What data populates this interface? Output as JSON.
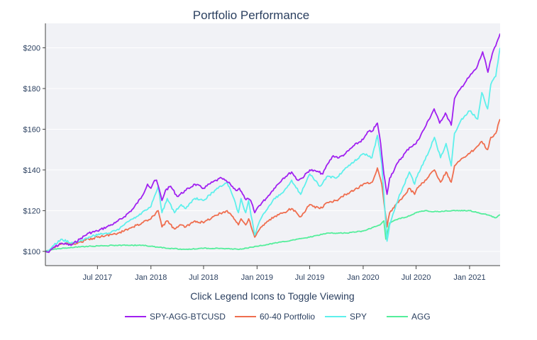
{
  "chart_data": {
    "type": "line",
    "title": "Portfolio Performance",
    "xlabel": "Click Legend Icons to Toggle Viewing",
    "ylabel": "",
    "x_start": "2017-01-03",
    "x_end": "2021-04-16",
    "xlim": [
      "2017-01-03",
      "2021-04-16"
    ],
    "ylim": [
      93,
      212
    ],
    "x_ticks": [
      {
        "date": "2017-07-01",
        "label": "Jul 2017"
      },
      {
        "date": "2018-01-01",
        "label": "Jan 2018"
      },
      {
        "date": "2018-07-01",
        "label": "Jul 2018"
      },
      {
        "date": "2019-01-01",
        "label": "Jan 2019"
      },
      {
        "date": "2019-07-01",
        "label": "Jul 2019"
      },
      {
        "date": "2020-01-01",
        "label": "Jan 2020"
      },
      {
        "date": "2020-07-01",
        "label": "Jul 2020"
      },
      {
        "date": "2021-01-01",
        "label": "Jan 2021"
      }
    ],
    "y_ticks": [
      {
        "value": 100,
        "label": "$100"
      },
      {
        "value": 120,
        "label": "$120"
      },
      {
        "value": 140,
        "label": "$140"
      },
      {
        "value": 160,
        "label": "$160"
      },
      {
        "value": 180,
        "label": "$180"
      },
      {
        "value": 200,
        "label": "$200"
      }
    ],
    "grid": true,
    "legend_position": "bottom",
    "series": [
      {
        "name": "SPY-AGG-BTCUSD",
        "color": "#a020f0",
        "points": [
          [
            "2017-01-03",
            100
          ],
          [
            "2017-01-15",
            99.5
          ],
          [
            "2017-02-01",
            102
          ],
          [
            "2017-03-01",
            104
          ],
          [
            "2017-04-01",
            103
          ],
          [
            "2017-05-01",
            106
          ],
          [
            "2017-06-01",
            109
          ],
          [
            "2017-07-01",
            110
          ],
          [
            "2017-08-01",
            112
          ],
          [
            "2017-09-01",
            114
          ],
          [
            "2017-10-01",
            117
          ],
          [
            "2017-11-01",
            121
          ],
          [
            "2017-12-01",
            127
          ],
          [
            "2017-12-20",
            133
          ],
          [
            "2018-01-01",
            131
          ],
          [
            "2018-01-10",
            134
          ],
          [
            "2018-01-20",
            135
          ],
          [
            "2018-02-01",
            129
          ],
          [
            "2018-02-08",
            125
          ],
          [
            "2018-02-20",
            130
          ],
          [
            "2018-03-10",
            132
          ],
          [
            "2018-04-01",
            127
          ],
          [
            "2018-05-01",
            130
          ],
          [
            "2018-06-01",
            133
          ],
          [
            "2018-07-01",
            131
          ],
          [
            "2018-08-01",
            134
          ],
          [
            "2018-09-01",
            136
          ],
          [
            "2018-10-01",
            133
          ],
          [
            "2018-10-20",
            130
          ],
          [
            "2018-11-01",
            131
          ],
          [
            "2018-11-20",
            126
          ],
          [
            "2018-12-10",
            125
          ],
          [
            "2018-12-24",
            119
          ],
          [
            "2019-01-05",
            122
          ],
          [
            "2019-02-01",
            126
          ],
          [
            "2019-03-01",
            131
          ],
          [
            "2019-04-01",
            136
          ],
          [
            "2019-04-30",
            139
          ],
          [
            "2019-05-20",
            135
          ],
          [
            "2019-06-05",
            136
          ],
          [
            "2019-07-01",
            140
          ],
          [
            "2019-08-01",
            139
          ],
          [
            "2019-08-15",
            138
          ],
          [
            "2019-09-01",
            143
          ],
          [
            "2019-09-20",
            147
          ],
          [
            "2019-10-10",
            146
          ],
          [
            "2019-11-01",
            148
          ],
          [
            "2019-12-01",
            152
          ],
          [
            "2020-01-01",
            155
          ],
          [
            "2020-01-20",
            159
          ],
          [
            "2020-02-01",
            159
          ],
          [
            "2020-02-19",
            163
          ],
          [
            "2020-03-01",
            153
          ],
          [
            "2020-03-12",
            138
          ],
          [
            "2020-03-23",
            128
          ],
          [
            "2020-04-01",
            136
          ],
          [
            "2020-05-01",
            144
          ],
          [
            "2020-06-08",
            151
          ],
          [
            "2020-07-01",
            153
          ],
          [
            "2020-08-01",
            161
          ],
          [
            "2020-09-01",
            170
          ],
          [
            "2020-09-20",
            163
          ],
          [
            "2020-10-10",
            168
          ],
          [
            "2020-10-30",
            162
          ],
          [
            "2020-11-10",
            175
          ],
          [
            "2020-12-01",
            180
          ],
          [
            "2021-01-01",
            186
          ],
          [
            "2021-01-25",
            190
          ],
          [
            "2021-02-15",
            198
          ],
          [
            "2021-03-05",
            188
          ],
          [
            "2021-03-20",
            197
          ],
          [
            "2021-04-01",
            201
          ],
          [
            "2021-04-16",
            207
          ]
        ]
      },
      {
        "name": "60-40 Portfolio",
        "color": "#ef6e4f",
        "points": [
          [
            "2017-01-03",
            100
          ],
          [
            "2017-01-15",
            99.8
          ],
          [
            "2017-02-01",
            102
          ],
          [
            "2017-03-01",
            104
          ],
          [
            "2017-04-01",
            103.5
          ],
          [
            "2017-05-01",
            104.5
          ],
          [
            "2017-06-01",
            106
          ],
          [
            "2017-07-01",
            107
          ],
          [
            "2017-08-01",
            108
          ],
          [
            "2017-09-01",
            108.5
          ],
          [
            "2017-10-01",
            110
          ],
          [
            "2017-11-01",
            112
          ],
          [
            "2017-12-01",
            114
          ],
          [
            "2018-01-01",
            116
          ],
          [
            "2018-01-26",
            120
          ],
          [
            "2018-02-08",
            112
          ],
          [
            "2018-02-25",
            115
          ],
          [
            "2018-03-23",
            111
          ],
          [
            "2018-04-15",
            113
          ],
          [
            "2018-05-01",
            112
          ],
          [
            "2018-06-01",
            115
          ],
          [
            "2018-07-01",
            114
          ],
          [
            "2018-08-01",
            117
          ],
          [
            "2018-09-20",
            120
          ],
          [
            "2018-10-10",
            117
          ],
          [
            "2018-10-29",
            113
          ],
          [
            "2018-11-07",
            116
          ],
          [
            "2018-11-23",
            113
          ],
          [
            "2018-12-03",
            116
          ],
          [
            "2018-12-24",
            107
          ],
          [
            "2019-01-10",
            111
          ],
          [
            "2019-02-01",
            114
          ],
          [
            "2019-03-01",
            117
          ],
          [
            "2019-04-01",
            119
          ],
          [
            "2019-04-30",
            121
          ],
          [
            "2019-05-31",
            117
          ],
          [
            "2019-07-01",
            123
          ],
          [
            "2019-08-05",
            121
          ],
          [
            "2019-09-01",
            124
          ],
          [
            "2019-10-01",
            125
          ],
          [
            "2019-11-01",
            128
          ],
          [
            "2019-12-01",
            130
          ],
          [
            "2020-01-01",
            133
          ],
          [
            "2020-02-01",
            134
          ],
          [
            "2020-02-19",
            141
          ],
          [
            "2020-03-05",
            133
          ],
          [
            "2020-03-23",
            112
          ],
          [
            "2020-04-01",
            119
          ],
          [
            "2020-05-01",
            124
          ],
          [
            "2020-06-08",
            131
          ],
          [
            "2020-06-26",
            128
          ],
          [
            "2020-07-01",
            130
          ],
          [
            "2020-08-01",
            135
          ],
          [
            "2020-09-02",
            140
          ],
          [
            "2020-09-23",
            134
          ],
          [
            "2020-10-12",
            139
          ],
          [
            "2020-10-30",
            134
          ],
          [
            "2020-11-10",
            142
          ],
          [
            "2020-12-01",
            145
          ],
          [
            "2021-01-01",
            148
          ],
          [
            "2021-02-12",
            154
          ],
          [
            "2021-03-04",
            150
          ],
          [
            "2021-03-15",
            156
          ],
          [
            "2021-04-01",
            158
          ],
          [
            "2021-04-16",
            165
          ]
        ]
      },
      {
        "name": "SPY",
        "color": "#5ef0ec",
        "points": [
          [
            "2017-01-03",
            100
          ],
          [
            "2017-01-15",
            100.5
          ],
          [
            "2017-02-01",
            103
          ],
          [
            "2017-03-01",
            106
          ],
          [
            "2017-04-01",
            104
          ],
          [
            "2017-05-01",
            105
          ],
          [
            "2017-06-01",
            107
          ],
          [
            "2017-07-01",
            108
          ],
          [
            "2017-08-01",
            109
          ],
          [
            "2017-09-01",
            110
          ],
          [
            "2017-10-01",
            113
          ],
          [
            "2017-11-01",
            116
          ],
          [
            "2017-12-01",
            119
          ],
          [
            "2018-01-01",
            122
          ],
          [
            "2018-01-26",
            132
          ],
          [
            "2018-02-08",
            119
          ],
          [
            "2018-02-26",
            126
          ],
          [
            "2018-03-23",
            119
          ],
          [
            "2018-04-15",
            123
          ],
          [
            "2018-05-01",
            121
          ],
          [
            "2018-06-01",
            126
          ],
          [
            "2018-07-01",
            125
          ],
          [
            "2018-08-01",
            129
          ],
          [
            "2018-09-20",
            134
          ],
          [
            "2018-10-10",
            127
          ],
          [
            "2018-10-29",
            119
          ],
          [
            "2018-11-07",
            126
          ],
          [
            "2018-11-23",
            119
          ],
          [
            "2018-12-03",
            125
          ],
          [
            "2018-12-24",
            108
          ],
          [
            "2019-01-10",
            115
          ],
          [
            "2019-02-01",
            120
          ],
          [
            "2019-03-01",
            126
          ],
          [
            "2019-04-01",
            129
          ],
          [
            "2019-04-30",
            135
          ],
          [
            "2019-05-31",
            128
          ],
          [
            "2019-07-01",
            138
          ],
          [
            "2019-08-05",
            132
          ],
          [
            "2019-09-01",
            137
          ],
          [
            "2019-10-01",
            136
          ],
          [
            "2019-11-01",
            141
          ],
          [
            "2019-12-01",
            144
          ],
          [
            "2020-01-01",
            148
          ],
          [
            "2020-01-31",
            146
          ],
          [
            "2020-02-19",
            157
          ],
          [
            "2020-03-05",
            143
          ],
          [
            "2020-03-23",
            105
          ],
          [
            "2020-04-01",
            113
          ],
          [
            "2020-05-01",
            126
          ],
          [
            "2020-06-08",
            139
          ],
          [
            "2020-06-26",
            133
          ],
          [
            "2020-07-01",
            136
          ],
          [
            "2020-08-01",
            145
          ],
          [
            "2020-09-02",
            156
          ],
          [
            "2020-09-23",
            146
          ],
          [
            "2020-10-12",
            153
          ],
          [
            "2020-10-30",
            142
          ],
          [
            "2020-11-10",
            158
          ],
          [
            "2020-12-01",
            164
          ],
          [
            "2021-01-01",
            169
          ],
          [
            "2021-01-29",
            165
          ],
          [
            "2021-02-12",
            178
          ],
          [
            "2021-03-04",
            170
          ],
          [
            "2021-03-15",
            182
          ],
          [
            "2021-04-01",
            186
          ],
          [
            "2021-04-16",
            200
          ]
        ]
      },
      {
        "name": "AGG",
        "color": "#54ee9b",
        "points": [
          [
            "2017-01-03",
            100
          ],
          [
            "2017-02-01",
            101
          ],
          [
            "2017-03-01",
            101.5
          ],
          [
            "2017-04-01",
            102
          ],
          [
            "2017-06-01",
            102.5
          ],
          [
            "2017-09-01",
            103
          ],
          [
            "2017-12-01",
            103
          ],
          [
            "2018-01-01",
            102.5
          ],
          [
            "2018-03-01",
            101.5
          ],
          [
            "2018-05-01",
            101
          ],
          [
            "2018-07-01",
            101.5
          ],
          [
            "2018-09-01",
            101.5
          ],
          [
            "2018-11-01",
            101
          ],
          [
            "2019-01-01",
            102.5
          ],
          [
            "2019-03-01",
            104
          ],
          [
            "2019-05-01",
            105.5
          ],
          [
            "2019-07-01",
            107
          ],
          [
            "2019-09-01",
            109
          ],
          [
            "2019-11-01",
            109
          ],
          [
            "2020-01-01",
            110
          ],
          [
            "2020-02-28",
            113
          ],
          [
            "2020-03-12",
            115
          ],
          [
            "2020-03-19",
            106
          ],
          [
            "2020-04-01",
            114
          ],
          [
            "2020-05-01",
            116
          ],
          [
            "2020-06-01",
            117
          ],
          [
            "2020-07-01",
            119
          ],
          [
            "2020-08-01",
            120
          ],
          [
            "2020-09-01",
            119.5
          ],
          [
            "2020-11-01",
            120
          ],
          [
            "2021-01-01",
            120
          ],
          [
            "2021-02-01",
            119
          ],
          [
            "2021-03-01",
            118
          ],
          [
            "2021-04-01",
            116.5
          ],
          [
            "2021-04-16",
            118
          ]
        ]
      }
    ]
  }
}
